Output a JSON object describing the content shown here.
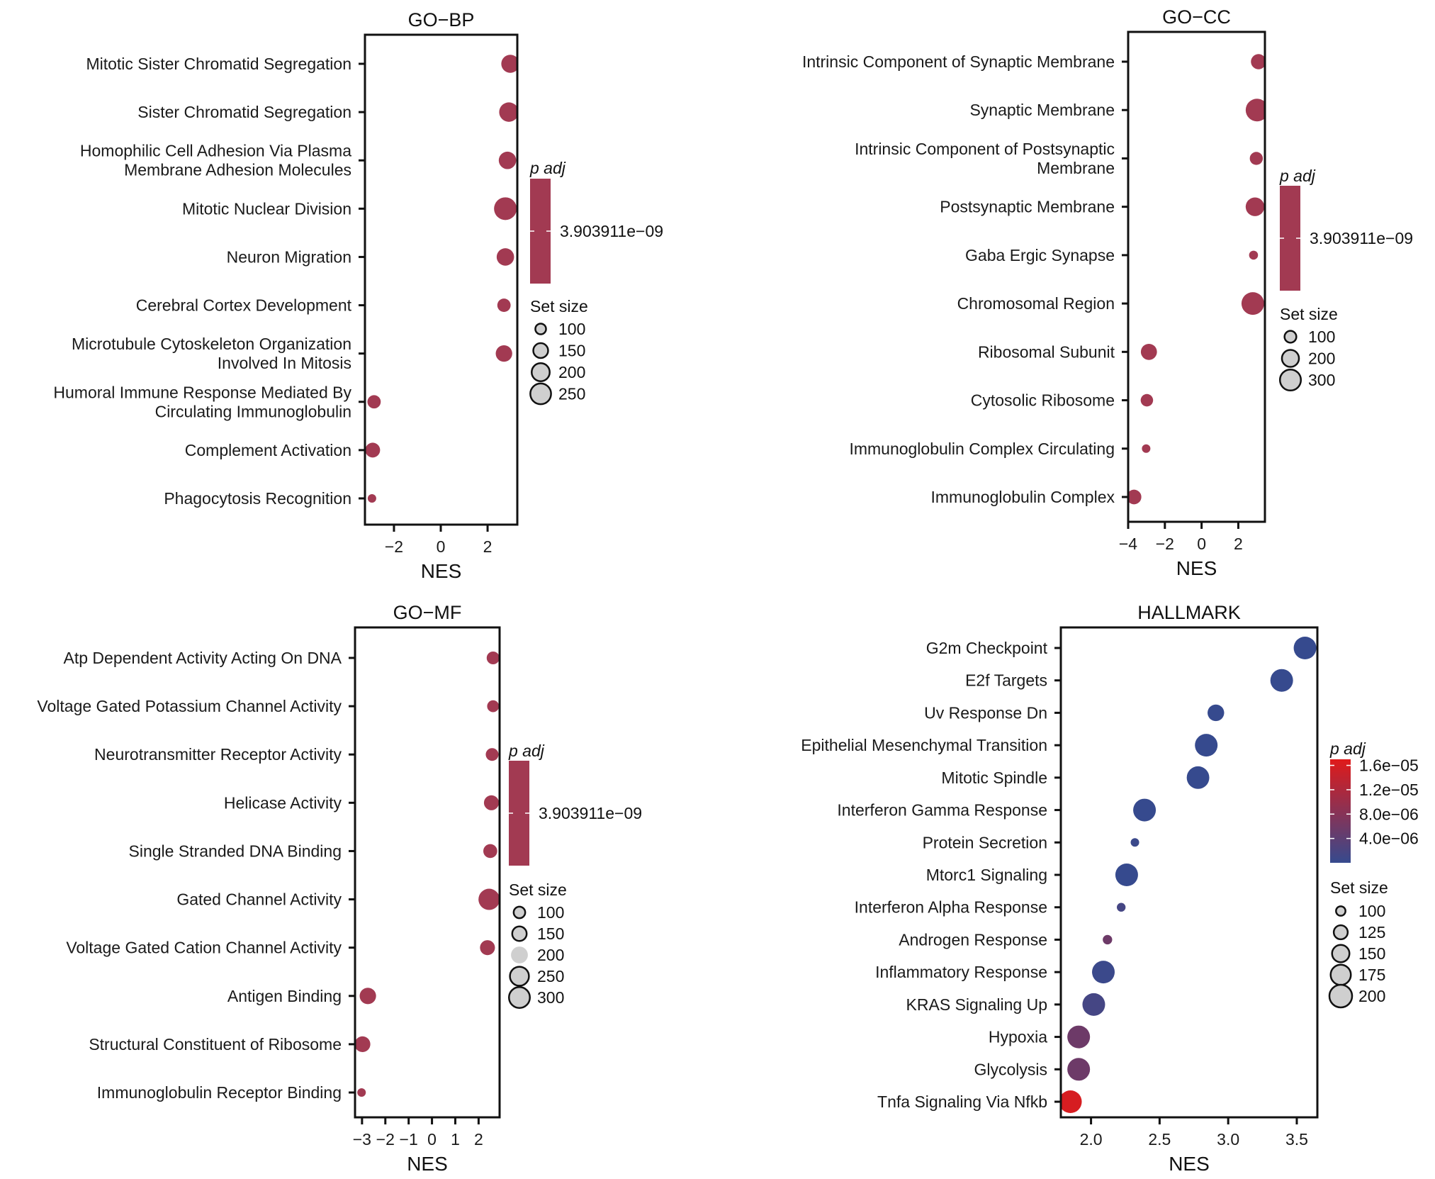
{
  "chart_data": [
    {
      "type": "scatter",
      "title": "GO−BP",
      "xlabel": "NES",
      "ylabel": "",
      "xlim": [
        -3.24,
        3.27
      ],
      "xticks": [
        -2,
        0,
        2
      ],
      "xtick_labels": [
        "−2",
        "0",
        "2"
      ],
      "grid": false,
      "color_legend": {
        "title": "p adj",
        "labels": [
          "3.903911e−09"
        ],
        "colors": [
          "#a23a52"
        ]
      },
      "size_legend": {
        "title": "Set size",
        "values": [
          100,
          150,
          200,
          250
        ],
        "labels": [
          "100",
          "150",
          "200",
          "250"
        ]
      },
      "points": [
        {
          "term": [
            "Mitotic Sister Chromatid Segregation"
          ],
          "nes": 2.97,
          "set_size": 200,
          "color": "#a23a52"
        },
        {
          "term": [
            "Sister Chromatid Segregation"
          ],
          "nes": 2.91,
          "set_size": 225,
          "color": "#a23a52"
        },
        {
          "term": [
            "Homophilic Cell Adhesion Via Plasma",
            "Membrane Adhesion Molecules"
          ],
          "nes": 2.85,
          "set_size": 190,
          "color": "#a23a52"
        },
        {
          "term": [
            "Mitotic Nuclear Division"
          ],
          "nes": 2.76,
          "set_size": 290,
          "color": "#a23a52"
        },
        {
          "term": [
            "Neuron Migration"
          ],
          "nes": 2.76,
          "set_size": 190,
          "color": "#a23a52"
        },
        {
          "term": [
            "Cerebral Cortex Development"
          ],
          "nes": 2.7,
          "set_size": 130,
          "color": "#a23a52"
        },
        {
          "term": [
            "Microtubule Cytoskeleton Organization",
            "Involved In Mitosis"
          ],
          "nes": 2.7,
          "set_size": 175,
          "color": "#a23a52"
        },
        {
          "term": [
            "Humoral Immune Response Mediated By",
            "Circulating Immunoglobulin"
          ],
          "nes": -2.85,
          "set_size": 130,
          "color": "#a23a52"
        },
        {
          "term": [
            "Complement Activation"
          ],
          "nes": -2.91,
          "set_size": 150,
          "color": "#a23a52"
        },
        {
          "term": [
            "Phagocytosis Recognition"
          ],
          "nes": -2.94,
          "set_size": 80,
          "color": "#a23a52"
        }
      ]
    },
    {
      "type": "scatter",
      "title": "GO−CC",
      "xlabel": "NES",
      "ylabel": "",
      "xlim": [
        -4.0,
        3.45
      ],
      "xticks": [
        -4,
        -2,
        0,
        2
      ],
      "xtick_labels": [
        "−4",
        "−2",
        "0",
        "2"
      ],
      "grid": false,
      "color_legend": {
        "title": "p adj",
        "labels": [
          "3.903911e−09"
        ],
        "colors": [
          "#a23a52"
        ]
      },
      "size_legend": {
        "title": "Set size",
        "values": [
          100,
          200,
          300
        ],
        "labels": [
          "100",
          "200",
          "300"
        ]
      },
      "points": [
        {
          "term": [
            "Intrinsic Component of Synaptic Membrane"
          ],
          "nes": 3.1,
          "set_size": 160,
          "color": "#a23a52"
        },
        {
          "term": [
            "Synaptic Membrane"
          ],
          "nes": 3.02,
          "set_size": 350,
          "color": "#a23a52"
        },
        {
          "term": [
            "Intrinsic Component of Postsynaptic",
            "Membrane"
          ],
          "nes": 2.98,
          "set_size": 120,
          "color": "#a23a52"
        },
        {
          "term": [
            "Postsynaptic Membrane"
          ],
          "nes": 2.91,
          "set_size": 240,
          "color": "#a23a52"
        },
        {
          "term": [
            "Gaba Ergic Synapse"
          ],
          "nes": 2.83,
          "set_size": 60,
          "color": "#a23a52"
        },
        {
          "term": [
            "Chromosomal Region"
          ],
          "nes": 2.79,
          "set_size": 350,
          "color": "#a23a52"
        },
        {
          "term": [
            "Ribosomal Subunit"
          ],
          "nes": -2.87,
          "set_size": 180,
          "color": "#a23a52"
        },
        {
          "term": [
            "Cytosolic Ribosome"
          ],
          "nes": -2.98,
          "set_size": 110,
          "color": "#a23a52"
        },
        {
          "term": [
            "Immunoglobulin Complex Circulating"
          ],
          "nes": -3.02,
          "set_size": 55,
          "color": "#a23a52"
        },
        {
          "term": [
            "Immunoglobulin Complex"
          ],
          "nes": -3.68,
          "set_size": 150,
          "color": "#a23a52"
        }
      ]
    },
    {
      "type": "scatter",
      "title": "GO−MF",
      "xlabel": "NES",
      "ylabel": "",
      "xlim": [
        -3.3,
        2.9
      ],
      "xticks": [
        -3,
        -2,
        -1,
        0,
        1,
        2
      ],
      "xtick_labels": [
        "−3",
        "−2",
        "−1",
        "0",
        "1",
        "2"
      ],
      "grid": false,
      "color_legend": {
        "title": "p adj",
        "labels": [
          "3.903911e−09"
        ],
        "colors": [
          "#a23a52"
        ]
      },
      "size_legend": {
        "title": "Set size",
        "values": [
          100,
          150,
          200,
          250,
          300
        ],
        "labels": [
          "100",
          "150",
          "200",
          "250",
          "300"
        ],
        "unstroked": [
          false,
          false,
          true,
          false,
          false
        ]
      },
      "points": [
        {
          "term": [
            "Atp Dependent Activity Acting On DNA"
          ],
          "nes": 2.62,
          "set_size": 120,
          "color": "#a23a52"
        },
        {
          "term": [
            "Voltage Gated Potassium Channel Activity"
          ],
          "nes": 2.62,
          "set_size": 105,
          "color": "#a23a52"
        },
        {
          "term": [
            "Neurotransmitter Receptor Activity"
          ],
          "nes": 2.58,
          "set_size": 120,
          "color": "#a23a52"
        },
        {
          "term": [
            "Helicase Activity"
          ],
          "nes": 2.55,
          "set_size": 160,
          "color": "#a23a52"
        },
        {
          "term": [
            "Single Stranded DNA Binding"
          ],
          "nes": 2.5,
          "set_size": 140,
          "color": "#a23a52"
        },
        {
          "term": [
            "Gated Channel Activity"
          ],
          "nes": 2.45,
          "set_size": 310,
          "color": "#a23a52"
        },
        {
          "term": [
            "Voltage Gated Cation Channel Activity"
          ],
          "nes": 2.38,
          "set_size": 160,
          "color": "#a23a52"
        },
        {
          "term": [
            "Antigen Binding"
          ],
          "nes": -2.75,
          "set_size": 190,
          "color": "#a23a52"
        },
        {
          "term": [
            "Structural Constituent of Ribosome"
          ],
          "nes": -2.98,
          "set_size": 175,
          "color": "#a23a52"
        },
        {
          "term": [
            "Immunoglobulin Receptor Binding"
          ],
          "nes": -3.02,
          "set_size": 60,
          "color": "#a23a52"
        }
      ]
    },
    {
      "type": "scatter",
      "title": "HALLMARK",
      "xlabel": "NES",
      "ylabel": "",
      "xlim": [
        1.78,
        3.65
      ],
      "xticks": [
        2.0,
        2.5,
        3.0,
        3.5
      ],
      "xtick_labels": [
        "2.0",
        "2.5",
        "3.0",
        "3.5"
      ],
      "grid": false,
      "color_legend": {
        "title": "p adj",
        "labels": [
          "1.6e−05",
          "1.2e−05",
          "8.0e−06",
          "4.0e−06"
        ],
        "values": [
          1.6e-05,
          1.2e-05,
          8e-06,
          4e-06
        ],
        "range": [
          1e-09,
          1.7e-05
        ],
        "low_color": "#364a8e",
        "high_color": "#e01a1a"
      },
      "size_legend": {
        "title": "Set size",
        "values": [
          100,
          125,
          150,
          175,
          200
        ],
        "labels": [
          "100",
          "125",
          "150",
          "175",
          "200"
        ]
      },
      "points": [
        {
          "term": [
            "G2m Checkpoint"
          ],
          "nes": 3.56,
          "set_size": 200,
          "padj": 1e-09
        },
        {
          "term": [
            "E2f Targets"
          ],
          "nes": 3.39,
          "set_size": 200,
          "padj": 1e-09
        },
        {
          "term": [
            "Uv Response Dn"
          ],
          "nes": 2.91,
          "set_size": 144,
          "padj": 1e-09
        },
        {
          "term": [
            "Epithelial Mesenchymal Transition"
          ],
          "nes": 2.84,
          "set_size": 200,
          "padj": 1e-09
        },
        {
          "term": [
            "Mitotic Spindle"
          ],
          "nes": 2.78,
          "set_size": 199,
          "padj": 1e-09
        },
        {
          "term": [
            "Interferon Gamma Response"
          ],
          "nes": 2.39,
          "set_size": 200,
          "padj": 1e-09
        },
        {
          "term": [
            "Protein Secretion"
          ],
          "nes": 2.32,
          "set_size": 96,
          "padj": 5e-07
        },
        {
          "term": [
            "Mtorc1 Signaling"
          ],
          "nes": 2.26,
          "set_size": 200,
          "padj": 1e-09
        },
        {
          "term": [
            "Interferon Alpha Response"
          ],
          "nes": 2.22,
          "set_size": 97,
          "padj": 1.5e-06
        },
        {
          "term": [
            "Androgen Response"
          ],
          "nes": 2.12,
          "set_size": 100,
          "padj": 5.5e-06
        },
        {
          "term": [
            "Inflammatory Response"
          ],
          "nes": 2.09,
          "set_size": 200,
          "padj": 5e-07
        },
        {
          "term": [
            "KRAS Signaling Up"
          ],
          "nes": 2.02,
          "set_size": 200,
          "padj": 1.5e-06
        },
        {
          "term": [
            "Hypoxia"
          ],
          "nes": 1.91,
          "set_size": 200,
          "padj": 5.5e-06
        },
        {
          "term": [
            "Glycolysis"
          ],
          "nes": 1.91,
          "set_size": 200,
          "padj": 5.5e-06
        },
        {
          "term": [
            "Tnfa Signaling Via Nfkb"
          ],
          "nes": 1.85,
          "set_size": 200,
          "padj": 1.6e-05
        }
      ]
    }
  ]
}
